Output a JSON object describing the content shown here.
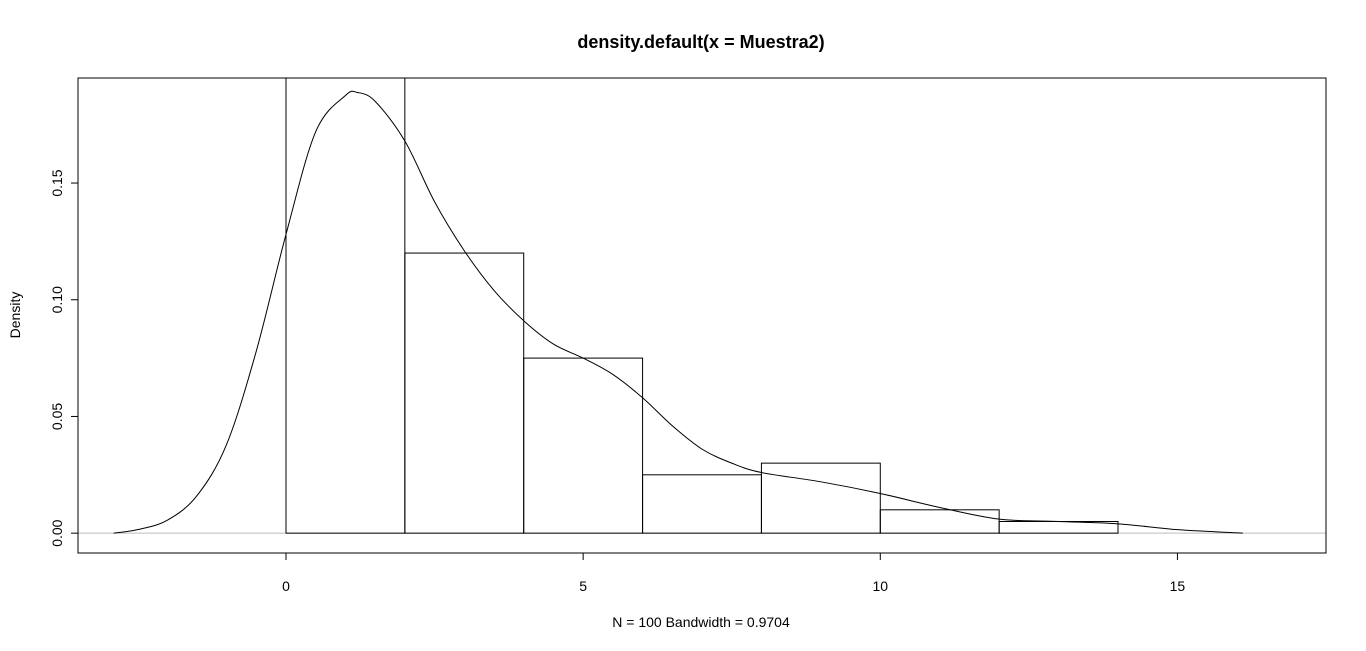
{
  "chart_data": {
    "type": "bar",
    "title": "density.default(x = Muestra2)",
    "xlabel": "N = 100   Bandwidth = 0.9704",
    "ylabel": "Density",
    "xlim": [
      -3.5,
      17.5
    ],
    "ylim": [
      -0.0085,
      0.195
    ],
    "x_ticks": [
      0,
      5,
      10,
      15
    ],
    "x_tick_labels": [
      "0",
      "5",
      "10",
      "15"
    ],
    "y_ticks": [
      0.0,
      0.05,
      0.1,
      0.15
    ],
    "y_tick_labels": [
      "0.00",
      "0.05",
      "0.10",
      "0.15"
    ],
    "grid": false,
    "histogram": {
      "bins": [
        {
          "x0": 0,
          "x1": 2,
          "density": 0.195
        },
        {
          "x0": 2,
          "x1": 4,
          "density": 0.12
        },
        {
          "x0": 4,
          "x1": 6,
          "density": 0.075
        },
        {
          "x0": 6,
          "x1": 8,
          "density": 0.025
        },
        {
          "x0": 8,
          "x1": 10,
          "density": 0.03
        },
        {
          "x0": 10,
          "x1": 12,
          "density": 0.01
        },
        {
          "x0": 12,
          "x1": 14,
          "density": 0.005
        }
      ]
    },
    "density_curve": {
      "x": [
        -2.9,
        -2.5,
        -2.0,
        -1.5,
        -1.0,
        -0.5,
        0.0,
        0.5,
        1.0,
        1.2,
        1.5,
        2.0,
        2.5,
        3.0,
        3.5,
        4.0,
        4.5,
        5.0,
        5.5,
        6.0,
        6.5,
        7.0,
        7.5,
        8.0,
        9.0,
        10.0,
        11.0,
        12.0,
        13.0,
        14.0,
        15.0,
        16.1
      ],
      "y": [
        0.0,
        0.0015,
        0.0055,
        0.016,
        0.038,
        0.078,
        0.128,
        0.172,
        0.1875,
        0.1888,
        0.185,
        0.168,
        0.142,
        0.121,
        0.104,
        0.091,
        0.081,
        0.075,
        0.068,
        0.058,
        0.046,
        0.036,
        0.03,
        0.026,
        0.022,
        0.017,
        0.011,
        0.006,
        0.005,
        0.004,
        0.0015,
        0.0
      ]
    }
  }
}
